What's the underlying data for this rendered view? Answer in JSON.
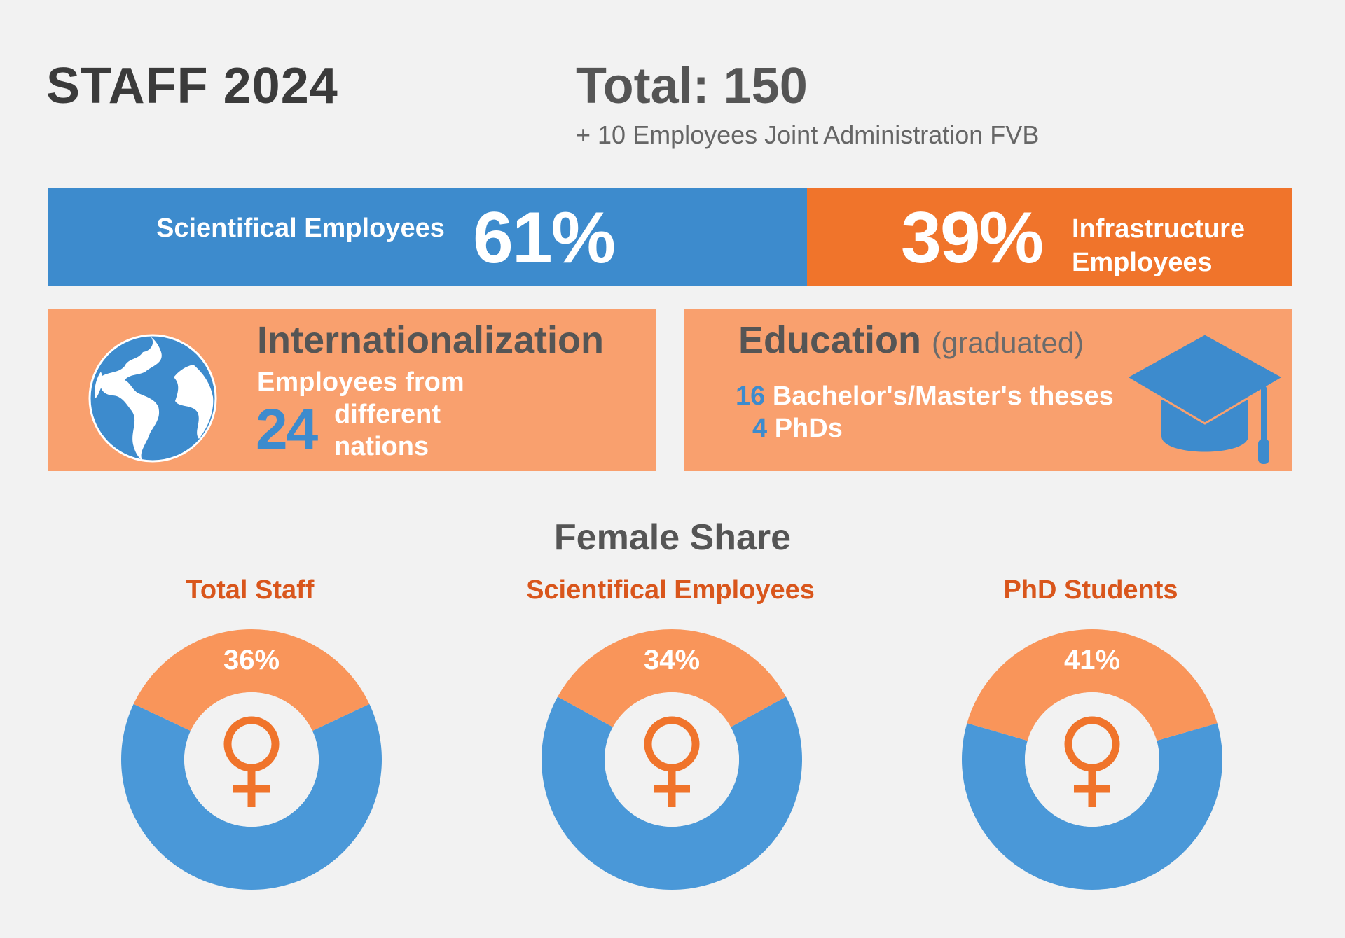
{
  "header": {
    "title": "STAFF 2024",
    "total": "Total: 150",
    "subtotal": "+ 10 Employees Joint Administration FVB"
  },
  "split": {
    "scientific": {
      "label": "Scientifical Employees",
      "percent_text": "61%",
      "value": 61,
      "color": "#3d8bcd"
    },
    "infrastructure": {
      "label_line1": "Infrastructure",
      "label_line2": "Employees",
      "percent_text": "39%",
      "value": 39,
      "color": "#f0742b"
    }
  },
  "internationalization": {
    "heading": "Internationalization",
    "line1": "Employees from",
    "count": "24",
    "line2": "different",
    "line3": "nations",
    "icon": "globe-icon"
  },
  "education": {
    "heading": "Education",
    "qualifier": "(graduated)",
    "theses_count": "16",
    "theses_label": "Bachelor's/Master's theses",
    "phd_count": "4",
    "phd_label": "PhDs",
    "icon": "graduation-cap-icon"
  },
  "female_share": {
    "title": "Female Share",
    "colors": {
      "female": "#f9955a",
      "rest": "#4a98d8",
      "symbol": "#f0742b"
    }
  },
  "chart_data": [
    {
      "type": "bar",
      "categories": [
        "Scientifical Employees",
        "Infrastructure Employees"
      ],
      "values": [
        61,
        39
      ]
    },
    {
      "type": "pie",
      "title": "Total Staff",
      "categories": [
        "Female",
        "Other"
      ],
      "values": [
        36,
        64
      ],
      "label": "36%"
    },
    {
      "type": "pie",
      "title": "Scientifical Employees",
      "categories": [
        "Female",
        "Other"
      ],
      "values": [
        34,
        66
      ],
      "label": "34%"
    },
    {
      "type": "pie",
      "title": "PhD Students",
      "categories": [
        "Female",
        "Other"
      ],
      "values": [
        41,
        59
      ],
      "label": "41%"
    }
  ]
}
